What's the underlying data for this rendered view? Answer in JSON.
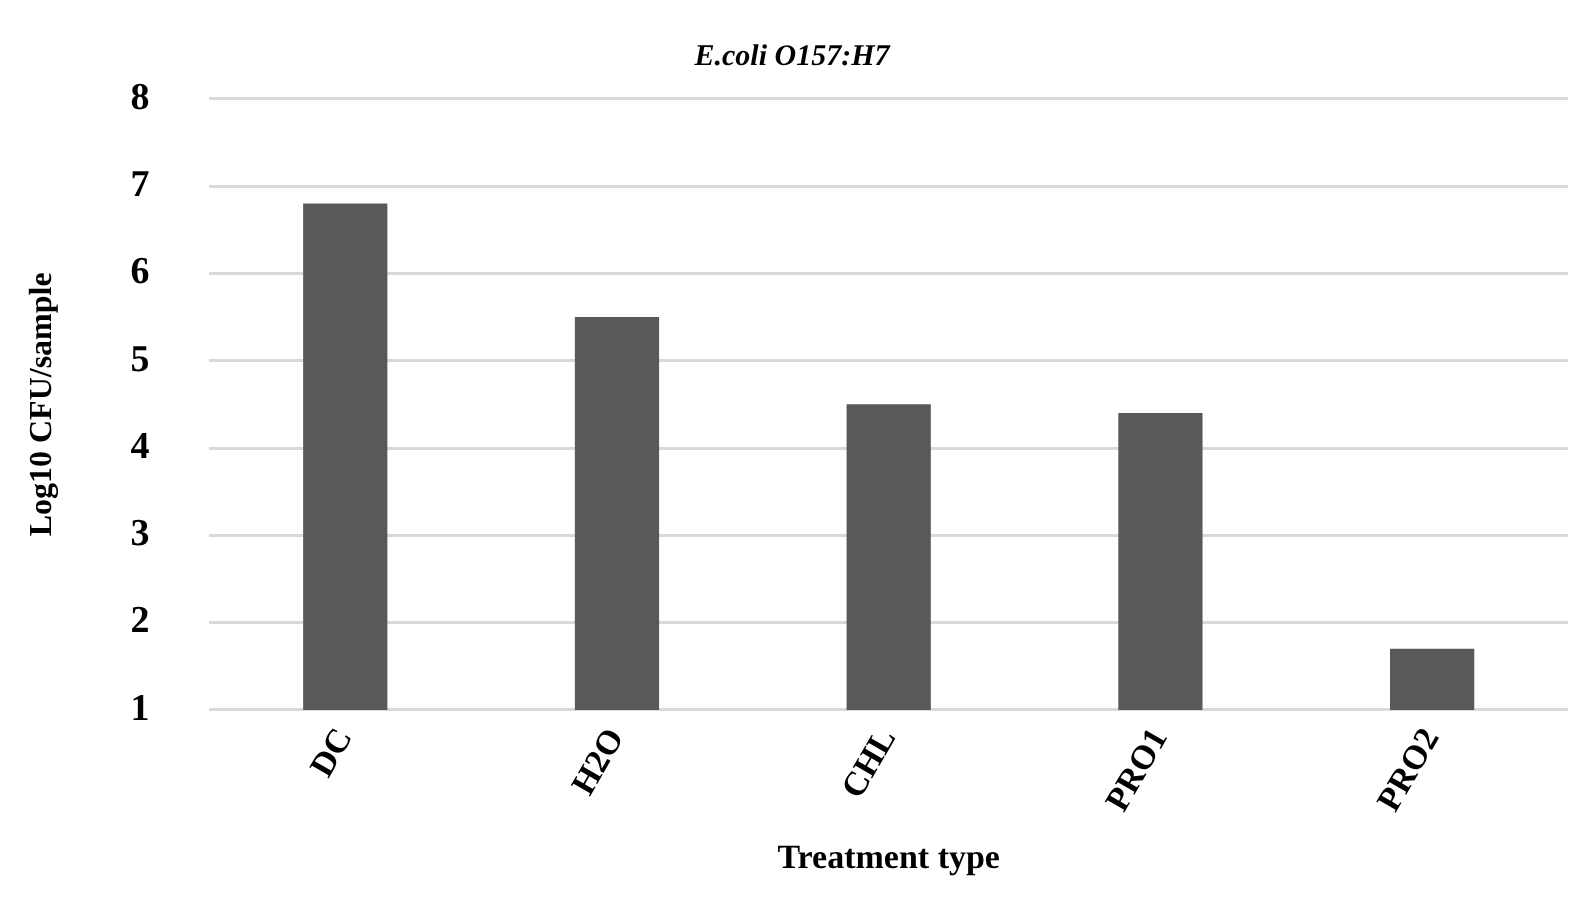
{
  "chart_data": {
    "type": "bar",
    "title": "E.coli O157:H7",
    "xlabel": "Treatment type",
    "ylabel": "Log10 CFU/sample",
    "categories": [
      "DC",
      "H2O",
      "CHL",
      "PRO1",
      "PRO2"
    ],
    "values": [
      6.8,
      5.5,
      4.5,
      4.4,
      1.7
    ],
    "color": "#595959",
    "ylim": [
      1,
      8
    ],
    "yticks": [
      1,
      2,
      3,
      4,
      5,
      6,
      7,
      8
    ],
    "grid": "y",
    "legend": false
  }
}
